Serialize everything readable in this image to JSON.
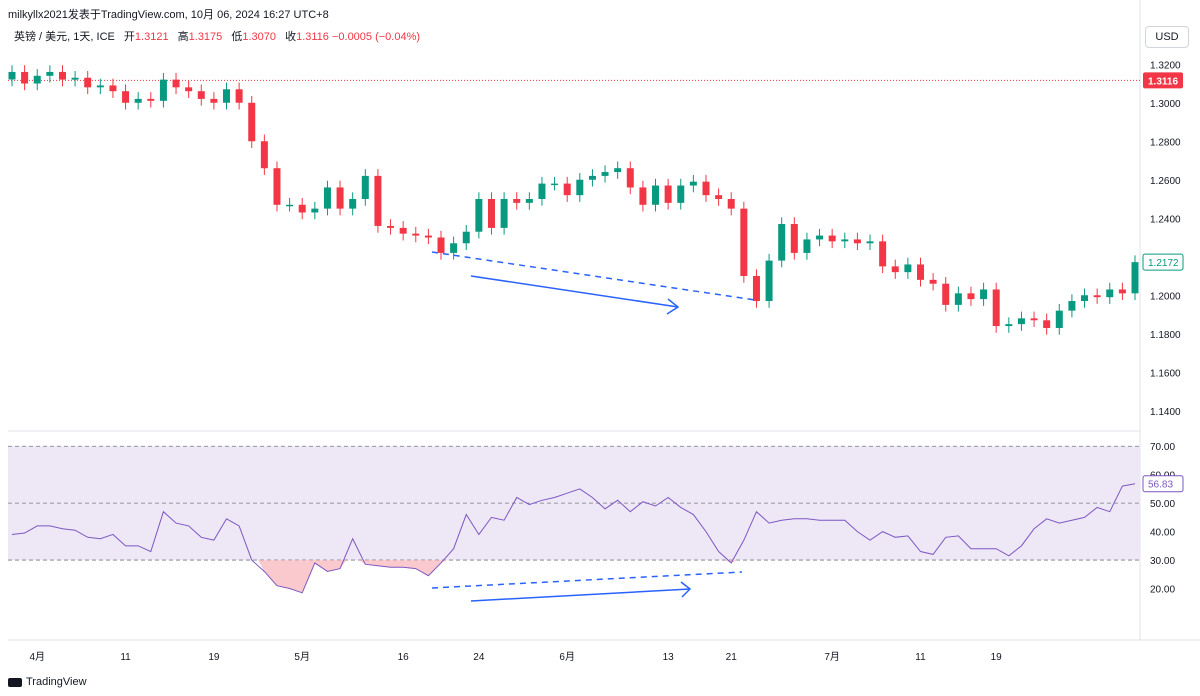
{
  "header": {
    "text": "milkyllx2021发表于TradingView.com,  10月 06, 2024 16:27 UTC+8"
  },
  "legend": {
    "symbol": "英镑 / 美元, 1天, ICE",
    "open_label": "开",
    "open": "1.3121",
    "high_label": "高",
    "high": "1.3175",
    "low_label": "低",
    "low": "1.3070",
    "close_label": "收",
    "close": "1.3116",
    "change": "−0.0005 (−0.04%)"
  },
  "currency_button": "USD",
  "footer": {
    "brand": "TradingView"
  },
  "colors": {
    "up": "#089981",
    "down": "#f23645",
    "rsi": "#7e57c2",
    "annotation": "#2962ff",
    "rsi_band": "#ede7f6"
  },
  "chart_data": [
    {
      "type": "candlestick",
      "series_count": 90,
      "ylim": [
        1.13,
        1.33
      ],
      "y_ticks": [
        "1.3200",
        "1.3000",
        "1.2800",
        "1.2600",
        "1.2400",
        "1.2200",
        "1.2000",
        "1.1800",
        "1.1600",
        "1.1400"
      ],
      "x_ticks": [
        "4月",
        "11",
        "19",
        "5月",
        "16",
        "24",
        "6月",
        "13",
        "21",
        "7月",
        "11",
        "19"
      ],
      "last_price_label": "1.3116",
      "current_price_label": "1.2172",
      "closes": [
        1.316,
        1.31,
        1.314,
        1.316,
        1.312,
        1.313,
        1.308,
        1.309,
        1.306,
        1.3,
        1.302,
        1.301,
        1.312,
        1.308,
        1.306,
        1.302,
        1.3,
        1.307,
        1.3,
        1.28,
        1.266,
        1.247,
        1.247,
        1.243,
        1.245,
        1.256,
        1.245,
        1.25,
        1.262,
        1.236,
        1.235,
        1.232,
        1.231,
        1.23,
        1.222,
        1.227,
        1.233,
        1.25,
        1.235,
        1.25,
        1.248,
        1.25,
        1.258,
        1.258,
        1.252,
        1.26,
        1.262,
        1.264,
        1.266,
        1.256,
        1.247,
        1.257,
        1.248,
        1.257,
        1.259,
        1.252,
        1.25,
        1.245,
        1.21,
        1.197,
        1.218,
        1.237,
        1.222,
        1.229,
        1.231,
        1.228,
        1.229,
        1.227,
        1.228,
        1.215,
        1.212,
        1.216,
        1.208,
        1.206,
        1.195,
        1.201,
        1.198,
        1.203,
        1.184,
        1.185,
        1.188,
        1.187,
        1.183,
        1.192,
        1.197,
        1.2,
        1.199,
        1.203,
        1.201,
        1.2172
      ],
      "rsi": {
        "label": "56.83",
        "ylim": [
          10,
          75
        ],
        "y_ticks": [
          "70.00",
          "60.00",
          "50.00",
          "40.00",
          "30.00",
          "20.00"
        ],
        "upper": 70,
        "mid": 50,
        "lower": 30,
        "values": [
          39,
          39.5,
          42,
          42,
          41,
          40.5,
          38,
          37.5,
          39,
          35,
          35,
          33,
          47,
          43,
          42,
          38,
          37,
          44.5,
          42,
          30,
          26,
          21,
          20,
          18.5,
          29,
          26,
          27,
          37.5,
          28.5,
          28,
          27.5,
          27.5,
          27,
          24.5,
          29,
          34,
          46,
          39,
          45,
          44,
          52,
          49.5,
          51,
          52,
          53.5,
          55,
          52,
          48,
          51,
          47,
          50.5,
          49,
          52,
          48.5,
          46,
          40,
          33,
          29,
          37,
          47,
          43,
          44,
          44.5,
          44.5,
          44,
          44,
          44,
          40,
          37,
          40,
          38,
          38.5,
          33,
          32,
          38,
          38.5,
          34,
          34,
          34,
          31.5,
          35,
          41,
          44.5,
          43,
          44,
          45,
          48.5,
          47,
          56,
          56.83
        ]
      }
    }
  ]
}
